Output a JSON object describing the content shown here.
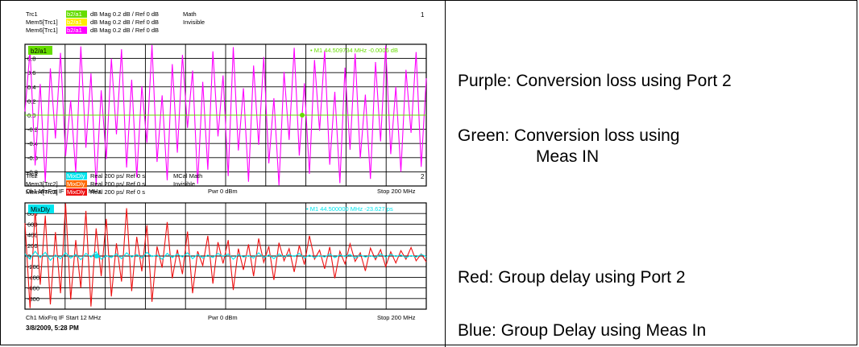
{
  "colors": {
    "magenta": "#ff00ff",
    "green": "#66dd00",
    "yellow": "#ffee00",
    "cyan": "#00e5ee",
    "orange": "#ff6a00",
    "red": "#ee1111"
  },
  "ch1": {
    "channel_no": "1",
    "traces": [
      {
        "name": "Trc1",
        "badge": "b2/a1",
        "badge_color": "#66dd00",
        "format": "dB Mag  0.2 dB /  Ref 0 dB",
        "extra": "Math"
      },
      {
        "name": "Mem5[Trc1]",
        "badge": "b2/a1",
        "badge_color": "#ffee00",
        "format": "dB Mag  0.2 dB /  Ref 0 dB",
        "extra": "Invisible"
      },
      {
        "name": "Mem6[Trc1]",
        "badge": "b2/a1",
        "badge_color": "#ff00ff",
        "format": "dB Mag  0.2 dB /  Ref 0 dB",
        "extra": ""
      }
    ],
    "grid_badge": "b2/a1",
    "marker": "• M1  44.509734 MHz  -0.0006 dB",
    "footer_left": "Ch1  MixFrq IF  Start  12 MHz",
    "footer_mid": "Pwr  0 dBm",
    "footer_right": "Stop  200 MHz"
  },
  "ch2": {
    "channel_no": "2",
    "traces": [
      {
        "name": "Trc2",
        "badge": "MixDly",
        "badge_color": "#00e5ee",
        "format": "Real  200 ps/  Ref 0 s",
        "extra": "MCal Math"
      },
      {
        "name": "Mem3[Trc2]",
        "badge": "MixDly",
        "badge_color": "#ff6a00",
        "format": "Real  200 ps/  Ref 0 s",
        "extra": "Invisible"
      },
      {
        "name": "Mem4[Trc2]",
        "badge": "MixDly",
        "badge_color": "#ee1111",
        "format": "Real  200 ps/  Ref 0 s",
        "extra": ""
      }
    ],
    "grid_badge": "MixDly",
    "marker": "• M1  44.500000 MHz  -23.627  ps",
    "footer_left": "Ch1  MixFrq IF  Start  12 MHz",
    "footer_mid": "Pwr  0 dBm",
    "footer_right": "Stop  200 MHz"
  },
  "timestamp": "3/8/2009, 5:28 PM",
  "notes": {
    "purple": "Purple: Conversion loss using Port 2",
    "green_1": "Green: Conversion loss using",
    "green_2": "Meas IN",
    "red": "Red: Group delay using Port 2",
    "blue": "Blue: Group Delay using Meas In"
  },
  "chart_data": [
    {
      "type": "line",
      "xlabel": "",
      "ylabel": "",
      "x_range_mhz": [
        12,
        200
      ],
      "ylim": [
        -1.0,
        1.0
      ],
      "y_ticks": [
        "0.8",
        "0.6",
        "0.4",
        "0.2",
        "0.0",
        "-0.2",
        "-0.4",
        "-0.6",
        "-0.8"
      ],
      "grid": true,
      "series": [
        {
          "name": "Mem6[Trc1]",
          "color": "#ff00ff",
          "pattern": "noisy",
          "values": [
            0.05,
            0.92,
            -0.71,
            0.44,
            -0.95,
            0.66,
            -0.33,
            0.88,
            -0.58,
            0.21,
            -0.81,
            0.97,
            -0.46,
            0.59,
            -0.99,
            0.35,
            -0.62,
            0.8,
            -0.27,
            0.93,
            -0.74,
            0.5,
            -0.88,
            0.41,
            -0.39,
            0.99,
            -0.66,
            0.28,
            -0.92,
            0.72,
            -0.53,
            0.85,
            -0.18,
            0.63,
            -0.97,
            0.47,
            -0.77,
            0.9,
            -0.3,
            0.56,
            -0.86,
            0.96,
            -0.5,
            0.38,
            -0.94,
            0.7,
            -0.42,
            0.82,
            -0.68,
            0.24,
            -0.99,
            0.61,
            -0.35,
            0.95,
            -0.57,
            0.45,
            -0.83,
            0.78,
            -0.22,
            0.91,
            -0.7,
            0.33,
            -0.96,
            0.67,
            -0.49,
            0.87,
            -0.61,
            0.29,
            -0.9,
            0.75,
            -0.37,
            0.98,
            -0.55,
            0.4,
            -0.8,
            0.64,
            -0.25,
            0.89,
            -0.73,
            0.52
          ]
        },
        {
          "name": "Trc1",
          "color": "#66dd00",
          "pattern": "flat",
          "values": [
            0.0,
            0.0
          ]
        }
      ]
    },
    {
      "type": "line",
      "xlabel": "",
      "ylabel": "",
      "x_range_mhz": [
        12,
        200
      ],
      "ylim": [
        -1000,
        1000
      ],
      "y_ticks": [
        "800",
        "600",
        "400",
        "200",
        "0",
        "-200",
        "-400",
        "-600",
        "-800"
      ],
      "grid": true,
      "series": [
        {
          "name": "Mem4[Trc2]",
          "color": "#ee1111",
          "pattern": "noisy",
          "values": [
            620,
            -980,
            880,
            -540,
            760,
            -910,
            450,
            -700,
            990,
            -820,
            300,
            -600,
            850,
            -950,
            520,
            -380,
            700,
            -760,
            240,
            -480,
            900,
            -660,
            360,
            -290,
            580,
            -860,
            180,
            -220,
            640,
            -420,
            120,
            -340,
            460,
            -700,
            90,
            -180,
            380,
            -520,
            260,
            -140,
            300,
            -640,
            140,
            -260,
            220,
            -380,
            330,
            -120,
            180,
            -450,
            250,
            -90,
            140,
            -300,
            200,
            -160,
            380,
            -60,
            110,
            -240,
            170,
            -420,
            90,
            -150,
            230,
            -100,
            60,
            -280,
            150,
            -70,
            120,
            -200,
            80,
            -130,
            100,
            -60,
            160,
            -90,
            40,
            -110
          ]
        },
        {
          "name": "Trc2",
          "color": "#00e5ee",
          "pattern": "noisy",
          "values": [
            40,
            -60,
            90,
            -30,
            70,
            -80,
            20,
            -50,
            60,
            -40,
            30,
            -70,
            50,
            -20,
            80,
            -60,
            10,
            -30,
            40,
            -50,
            60,
            -20,
            30,
            -40,
            70,
            -10,
            20,
            -60,
            50,
            -30,
            40,
            -20,
            60,
            -50,
            30,
            -40,
            20,
            -30,
            50,
            -10,
            40,
            -60,
            30,
            -20,
            10,
            -40,
            60,
            -30,
            20,
            -50,
            40,
            -20,
            30,
            -10,
            50,
            -40,
            20,
            -30,
            10,
            -20,
            40,
            -30,
            20,
            -10,
            30,
            -40,
            20,
            -20,
            10,
            -30,
            40,
            -20,
            30,
            -10,
            20,
            -30,
            10,
            -20,
            30,
            -10
          ]
        }
      ]
    }
  ]
}
